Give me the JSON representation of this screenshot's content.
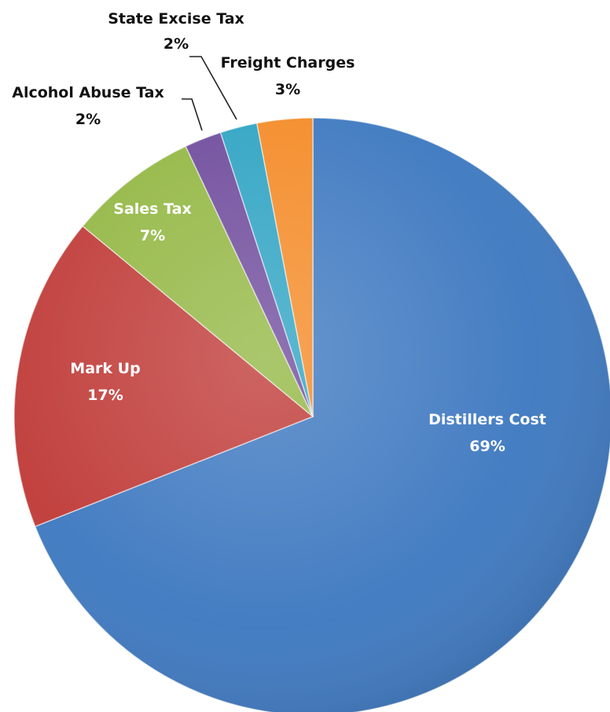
{
  "chart_data": {
    "type": "pie",
    "title": "",
    "slices": [
      {
        "label": "Distillers Cost",
        "value": 69,
        "value_label": "69%",
        "color": "#3d78c0",
        "label_style": "inside"
      },
      {
        "label": "Mark Up",
        "value": 17,
        "value_label": "17%",
        "color": "#bf3a37",
        "label_style": "inside"
      },
      {
        "label": "Sales Tax",
        "value": 7,
        "value_label": "7%",
        "color": "#93b743",
        "label_style": "inside"
      },
      {
        "label": "Alcohol Abuse Tax",
        "value": 2,
        "value_label": "2%",
        "color": "#6f4b9c",
        "label_style": "outside"
      },
      {
        "label": "State Excise Tax",
        "value": 2,
        "value_label": "2%",
        "color": "#2ea3c3",
        "label_style": "outside"
      },
      {
        "label": "Freight Charges",
        "value": 3,
        "value_label": "3%",
        "color": "#f48a26",
        "label_style": "outside"
      }
    ],
    "start_angle": "12 o'clock",
    "direction": "clockwise",
    "legend": "none",
    "data_labels": "category name and percentage"
  }
}
